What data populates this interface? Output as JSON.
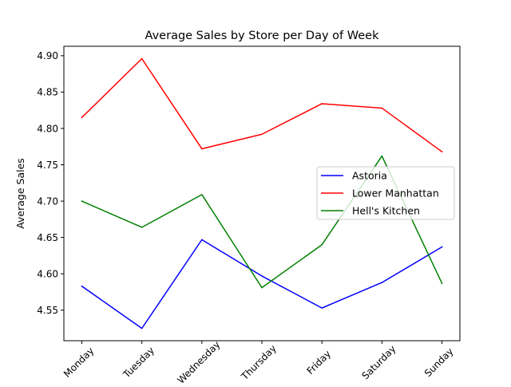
{
  "chart_data": {
    "type": "line",
    "title": "Average Sales by Store per Day of Week",
    "xlabel": "",
    "ylabel": "Average Sales",
    "categories": [
      "Monday",
      "Tuesday",
      "Wednesday",
      "Thursday",
      "Friday",
      "Saturday",
      "Sunday"
    ],
    "series": [
      {
        "name": "Astoria",
        "color": "#0000ff",
        "values": [
          4.583,
          4.525,
          4.647,
          4.597,
          4.553,
          4.588,
          4.637
        ]
      },
      {
        "name": "Lower Manhattan",
        "color": "#ff0000",
        "values": [
          4.815,
          4.896,
          4.772,
          4.792,
          4.834,
          4.828,
          4.768
        ]
      },
      {
        "name": "Hell's Kitchen",
        "color": "#008000",
        "values": [
          4.7,
          4.664,
          4.709,
          4.581,
          4.64,
          4.762,
          4.587
        ]
      }
    ],
    "ylim": [
      4.508,
      4.913
    ],
    "yticks": [
      "4.55",
      "4.60",
      "4.65",
      "4.70",
      "4.75",
      "4.80",
      "4.85",
      "4.90"
    ],
    "grid": false,
    "legend": "center-right"
  }
}
